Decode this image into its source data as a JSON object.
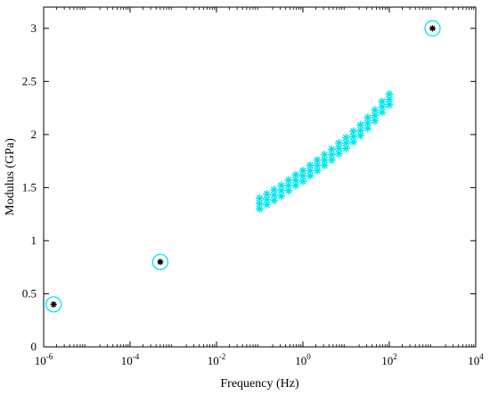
{
  "chart_data": {
    "type": "scatter",
    "title": "",
    "xlabel": "Frequency (Hz)",
    "ylabel": "Modulus (GPa)",
    "xscale": "log",
    "xlim": [
      1e-06,
      10000
    ],
    "ylim": [
      0,
      3.2
    ],
    "grid": false,
    "legend": "none",
    "x_ticks": [
      {
        "value": 1e-06,
        "base": "10",
        "exp": "-6"
      },
      {
        "value": 0.0001,
        "base": "10",
        "exp": "-4"
      },
      {
        "value": 0.01,
        "base": "10",
        "exp": "-2"
      },
      {
        "value": 1,
        "base": "10",
        "exp": "0"
      },
      {
        "value": 100,
        "base": "10",
        "exp": "2"
      },
      {
        "value": 10000,
        "base": "10",
        "exp": "4"
      }
    ],
    "y_ticks": [
      {
        "value": 0,
        "label": "0"
      },
      {
        "value": 0.5,
        "label": "0.5"
      },
      {
        "value": 1,
        "label": "1"
      },
      {
        "value": 1.5,
        "label": "1.5"
      },
      {
        "value": 2,
        "label": "2"
      },
      {
        "value": 2.5,
        "label": "2.5"
      },
      {
        "value": 3,
        "label": "3"
      }
    ],
    "series": [
      {
        "marker": "asterisk",
        "color": "#00e5ee",
        "x": [
          0.1,
          0.1468,
          0.2154,
          0.3162,
          0.4642,
          0.6813,
          1.0,
          1.468,
          2.154,
          3.162,
          4.642,
          6.813,
          10.0,
          14.68,
          21.54,
          31.62,
          46.42,
          68.13,
          100.0
        ],
        "y": [
          1.35,
          1.39,
          1.43,
          1.47,
          1.52,
          1.57,
          1.61,
          1.66,
          1.71,
          1.76,
          1.81,
          1.87,
          1.92,
          1.98,
          2.04,
          2.11,
          2.18,
          2.26,
          2.33
        ],
        "y_spread": 0.05
      },
      {
        "marker": "asterisk",
        "color": "#000000",
        "ring_color": "#00e5ee",
        "x": [
          1.7e-06,
          0.0005,
          1000
        ],
        "y": [
          0.4,
          0.8,
          3.0
        ]
      }
    ]
  }
}
